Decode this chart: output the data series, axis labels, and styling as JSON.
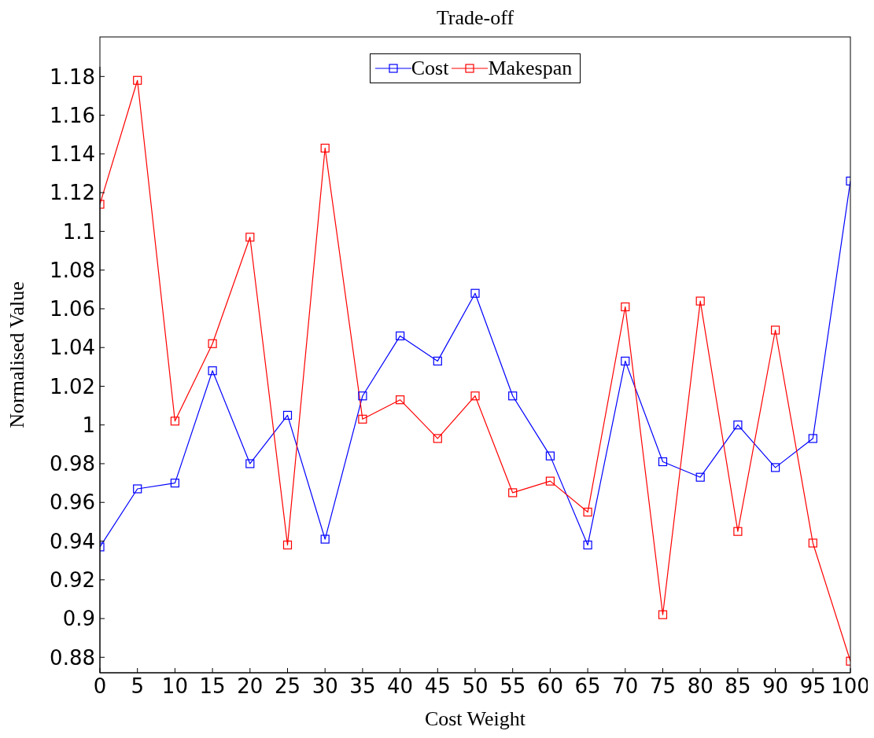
{
  "chart_data": {
    "type": "line",
    "title": "Trade-off",
    "xlabel": "Cost Weight",
    "ylabel": "Normalised Value",
    "x": [
      0,
      5,
      10,
      15,
      20,
      25,
      30,
      35,
      40,
      45,
      50,
      55,
      60,
      65,
      70,
      75,
      80,
      85,
      90,
      95,
      100
    ],
    "series": [
      {
        "name": "Cost",
        "color": "#0000ff",
        "values": [
          0.937,
          0.967,
          0.97,
          1.028,
          0.98,
          1.005,
          0.941,
          1.015,
          1.046,
          1.033,
          1.068,
          1.015,
          0.984,
          0.938,
          1.033,
          0.981,
          0.973,
          1.0,
          0.978,
          0.993,
          1.126
        ]
      },
      {
        "name": "Makespan",
        "color": "#ff0000",
        "values": [
          1.114,
          1.178,
          1.002,
          1.042,
          1.097,
          0.938,
          1.143,
          1.003,
          1.013,
          0.993,
          1.015,
          0.965,
          0.971,
          0.955,
          1.061,
          0.902,
          1.064,
          0.945,
          1.049,
          0.939,
          0.878
        ]
      }
    ],
    "xlim": [
      0,
      100
    ],
    "xticks": [
      0,
      5,
      10,
      15,
      20,
      25,
      30,
      35,
      40,
      45,
      50,
      55,
      60,
      65,
      70,
      75,
      80,
      85,
      90,
      95,
      100
    ],
    "ylim": [
      0.872,
      1.185
    ],
    "yticks": [
      0.88,
      0.9,
      0.92,
      0.94,
      0.96,
      0.98,
      1,
      1.02,
      1.04,
      1.06,
      1.08,
      1.1,
      1.12,
      1.14,
      1.16,
      1.18
    ],
    "grid": false,
    "legend": "top",
    "marker": "square",
    "line_style": "solid"
  }
}
